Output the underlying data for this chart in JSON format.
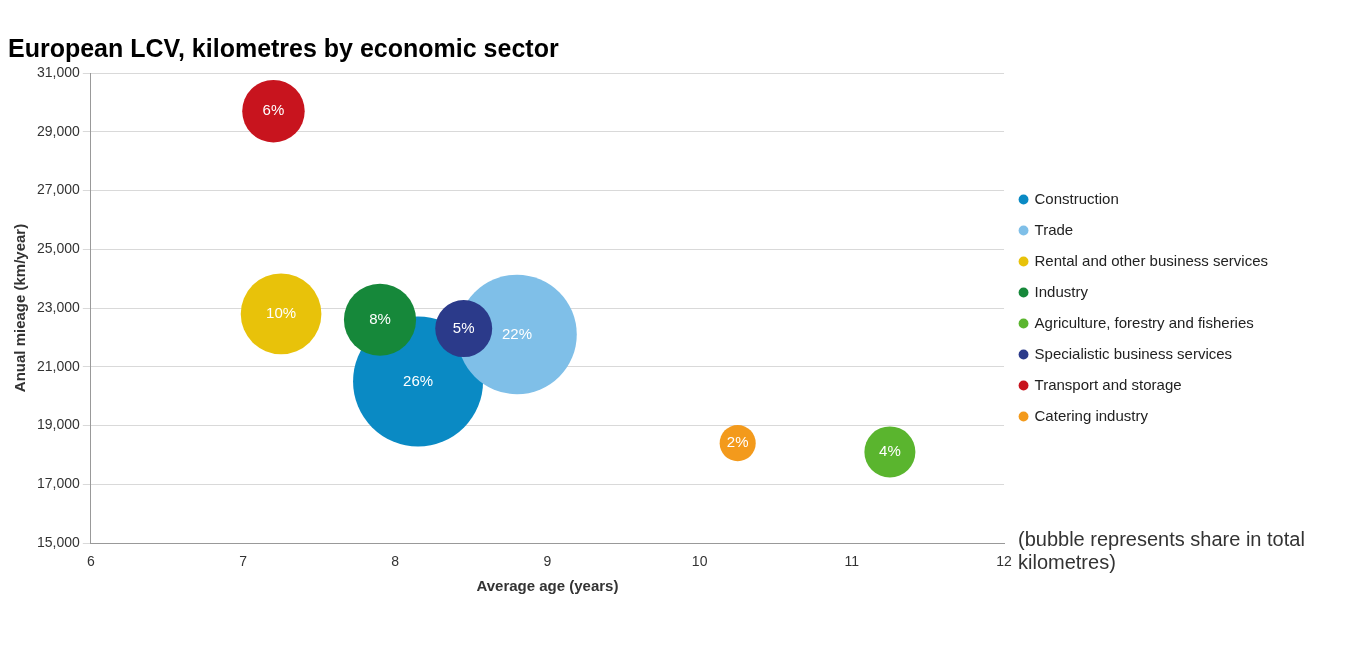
{
  "chart_data": {
    "type": "bubble",
    "title": "European LCV, kilometres by economic sector",
    "xlabel": "Average age (years)",
    "ylabel": "Anual mieage (km/year)",
    "xlim": [
      6,
      12
    ],
    "xticks": [
      6,
      7,
      8,
      9,
      10,
      11,
      12
    ],
    "ylim": [
      15000,
      31000
    ],
    "yticks": [
      {
        "value": 15000,
        "label": "15,000"
      },
      {
        "value": 17000,
        "label": "17,000"
      },
      {
        "value": 19000,
        "label": "19,000"
      },
      {
        "value": 21000,
        "label": "21,000"
      },
      {
        "value": 23000,
        "label": "23,000"
      },
      {
        "value": 25000,
        "label": "25,000"
      },
      {
        "value": 27000,
        "label": "27,000"
      },
      {
        "value": 29000,
        "label": "29,000"
      },
      {
        "value": 31000,
        "label": "31,000"
      }
    ],
    "grid": "y",
    "legend": "right",
    "annotations": [
      "(bubble represents share in total kilometres)",
      {
        "text": "26%",
        "x": 8.15,
        "y": 20500
      },
      {
        "text": "22%",
        "x": 8.8,
        "y": 22100
      },
      {
        "text": "10%",
        "x": 7.25,
        "y": 22800
      },
      {
        "text": "8%",
        "x": 7.9,
        "y": 22600
      },
      {
        "text": "4%",
        "x": 11.25,
        "y": 18100
      },
      {
        "text": "5%",
        "x": 8.45,
        "y": 22300
      },
      {
        "text": "6%",
        "x": 7.2,
        "y": 29700
      },
      {
        "text": "2%",
        "x": 10.25,
        "y": 18400
      }
    ],
    "series": [
      {
        "name": "Construction",
        "color": "#0a8ac4",
        "x": [
          8.15
        ],
        "values": [
          20500
        ],
        "sizes": [
          1
        ]
      },
      {
        "name": "Trade",
        "color": "#7fbfe8",
        "x": [
          8.8
        ],
        "values": [
          22100
        ],
        "sizes": [
          0.846
        ]
      },
      {
        "name": "Rental and other business services",
        "color": "#e8c20a",
        "x": [
          7.25
        ],
        "values": [
          22800
        ],
        "sizes": [
          0.385
        ]
      },
      {
        "name": "Industry",
        "color": "#16883a",
        "x": [
          7.9
        ],
        "values": [
          22600
        ],
        "sizes": [
          0.308
        ]
      },
      {
        "name": "Agriculture, forestry and fisheries",
        "color": "#5ab52e",
        "x": [
          11.25
        ],
        "values": [
          18100
        ],
        "sizes": [
          0.154
        ]
      },
      {
        "name": "Specialistic business services",
        "color": "#2b3a8a",
        "x": [
          8.45
        ],
        "values": [
          22300
        ],
        "sizes": [
          0.192
        ]
      },
      {
        "name": "Transport and storage",
        "color": "#c8141e",
        "x": [
          7.2
        ],
        "values": [
          29700
        ],
        "sizes": [
          0.231
        ]
      },
      {
        "name": "Catering industry",
        "color": "#f39a1c",
        "x": [
          10.25
        ],
        "values": [
          18400
        ],
        "sizes": [
          0.077
        ]
      }
    ]
  }
}
